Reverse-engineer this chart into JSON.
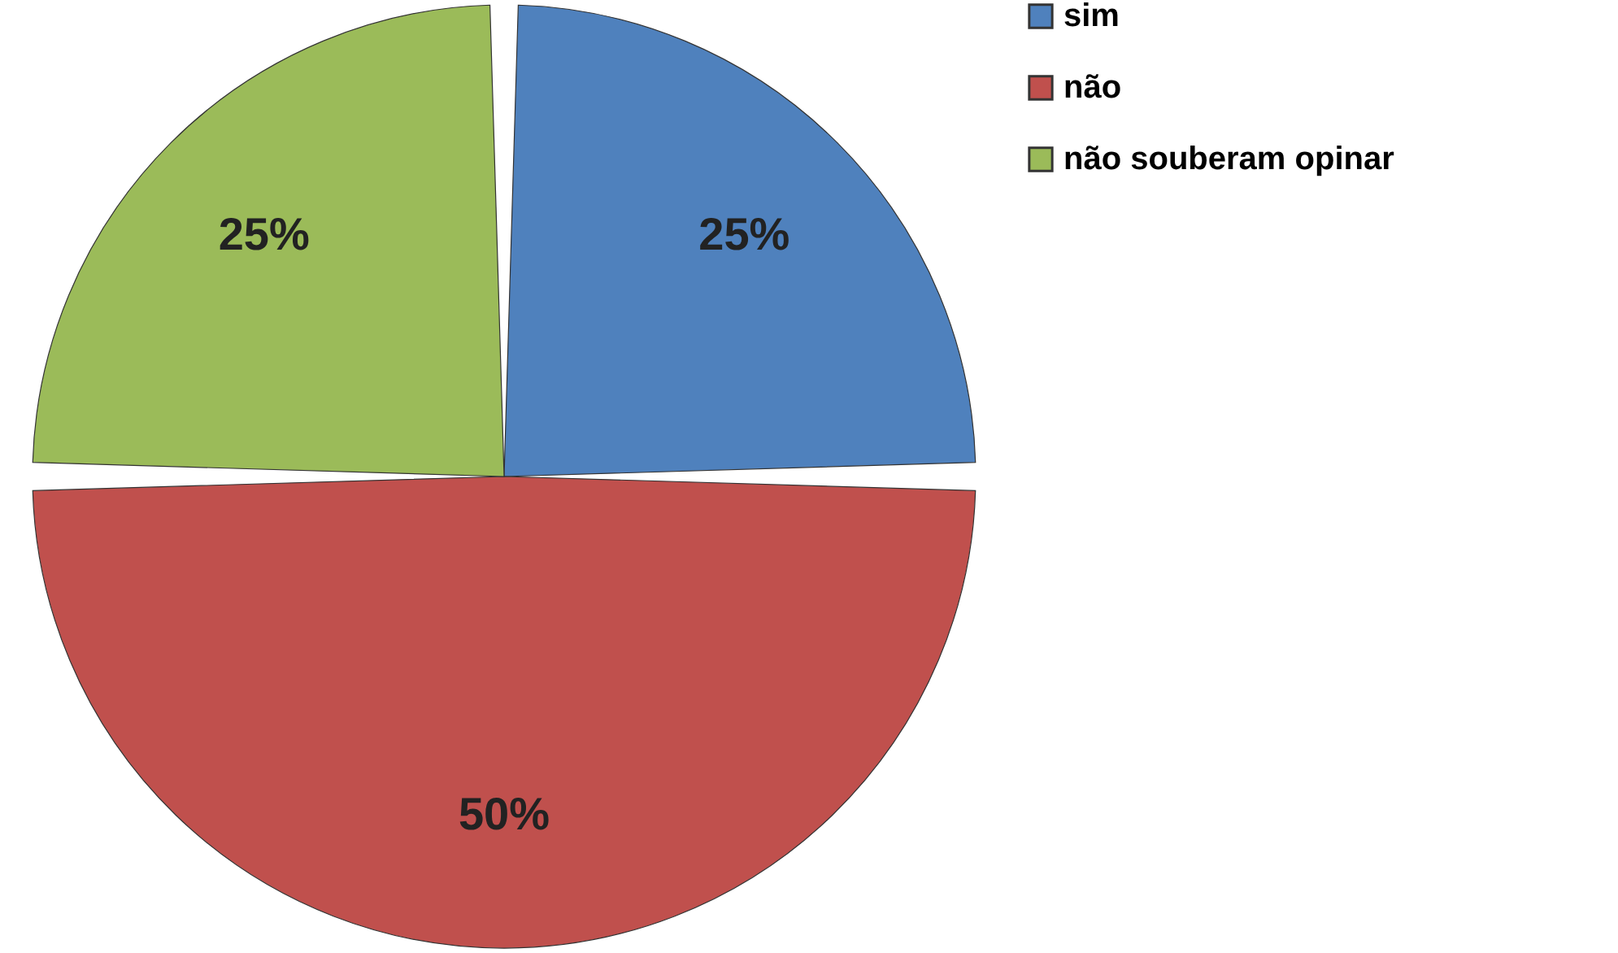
{
  "chart_data": {
    "type": "pie",
    "categories": [
      "sim",
      "não",
      "não souberam opinar"
    ],
    "values": [
      25,
      50,
      25
    ],
    "colors": [
      "#4f81bd",
      "#c0504d",
      "#9bbb59"
    ],
    "value_labels": [
      "25%",
      "50%",
      "25%"
    ],
    "legend": "right"
  }
}
